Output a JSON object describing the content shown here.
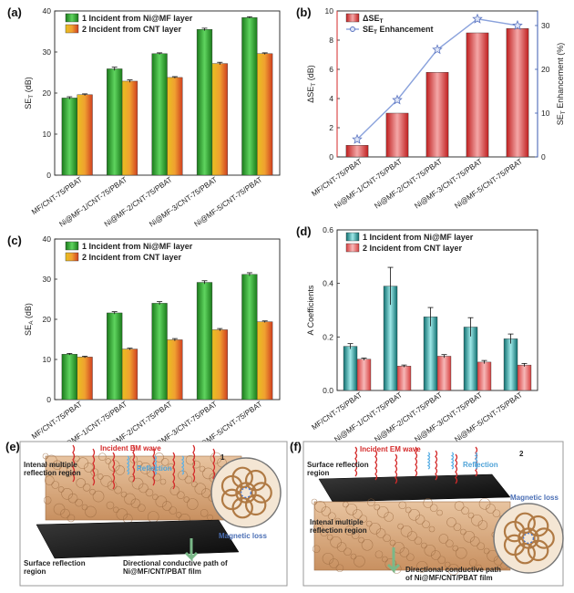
{
  "chart_data": [
    {
      "panel": "(a)",
      "type": "bar",
      "categories": [
        "MF/CNT-75/PBAT",
        "Ni@MF-1/CNT-75/PBAT",
        "Ni@MF-2/CNT-75/PBAT",
        "Ni@MF-3/CNT-75/PBAT",
        "Ni@MF-5/CNT-75/PBAT"
      ],
      "series": [
        {
          "name": "1 Incident from Ni@MF layer",
          "values": [
            18.8,
            25.9,
            29.6,
            35.5,
            38.4
          ],
          "errors": [
            0.3,
            0.4,
            0.2,
            0.3,
            0.2
          ],
          "color": "#2e9e2e"
        },
        {
          "name": "2 Incident from CNT layer",
          "values": [
            19.6,
            22.9,
            23.8,
            27.2,
            29.6
          ],
          "errors": [
            0.2,
            0.3,
            0.2,
            0.3,
            0.2
          ],
          "color": "#e0892a"
        }
      ],
      "ylabel": "SE",
      "ylabel_sub": "T",
      "ylabel_tail": " (dB)",
      "ylim": [
        0,
        40
      ],
      "yticks": [
        0,
        10,
        20,
        30,
        40
      ]
    },
    {
      "panel": "(b)",
      "type": "bar",
      "categories": [
        "MF/CNT-75/PBAT",
        "Ni@MF-1/CNT-75/PBAT",
        "Ni@MF-2/CNT-75/PBAT",
        "Ni@MF-3/CNT-75/PBAT",
        "Ni@MF-5/CNT-75/PBAT"
      ],
      "series": [
        {
          "name": "ΔSE",
          "name_sub": "T",
          "values": [
            0.8,
            3.0,
            5.8,
            8.5,
            8.8
          ],
          "color": "#d93838"
        },
        {
          "name": "SE",
          "name_sub": "T",
          "name_tail": " Enhancement",
          "values": [
            4,
            13,
            24.5,
            31.5,
            30
          ],
          "color": "#7f9ad6",
          "axis": "right"
        }
      ],
      "ylabel": "ΔSE",
      "ylabel_sub": "T",
      "ylabel_tail": " (dB)",
      "ylabel_right": "SE",
      "ylabel_right_sub": "T",
      "ylabel_right_tail": " Enhancement (%)",
      "ylim": [
        0,
        10
      ],
      "yticks": [
        0,
        2,
        4,
        6,
        8,
        10
      ],
      "ylim_right": [
        0,
        33.33
      ],
      "yticks_right": [
        0,
        10,
        20,
        30
      ]
    },
    {
      "panel": "(c)",
      "type": "bar",
      "categories": [
        "MF/CNT-75/PBAT",
        "Ni@MF-1/CNT-75/PBAT",
        "Ni@MF-2/CNT-75/PBAT",
        "Ni@MF-3/CNT-75/PBAT",
        "Ni@MF-5/CNT-75/PBAT"
      ],
      "series": [
        {
          "name": "1 Incident from Ni@MF layer",
          "values": [
            11.3,
            21.6,
            24.0,
            29.2,
            31.2
          ],
          "errors": [
            0.2,
            0.3,
            0.4,
            0.4,
            0.4
          ],
          "color": "#2e9e2e"
        },
        {
          "name": "2 Incident from CNT layer",
          "values": [
            10.6,
            12.6,
            14.9,
            17.4,
            19.4
          ],
          "errors": [
            0.2,
            0.2,
            0.3,
            0.3,
            0.2
          ],
          "color": "#e0892a"
        }
      ],
      "ylabel": "SE",
      "ylabel_sub": "A",
      "ylabel_tail": " (dB)",
      "ylim": [
        0,
        40
      ],
      "yticks": [
        0,
        10,
        20,
        30,
        40
      ]
    },
    {
      "panel": "(d)",
      "type": "bar",
      "categories": [
        "MF/CNT-75/PBAT",
        "Ni@MF-1/CNT-75/PBAT",
        "Ni@MF-2/CNT-75/PBAT",
        "Ni@MF-3/CNT-75/PBAT",
        "Ni@MF-5/CNT-75/PBAT"
      ],
      "series": [
        {
          "name": "1 Incident from Ni@MF layer",
          "values": [
            0.165,
            0.39,
            0.275,
            0.237,
            0.193
          ],
          "errors": [
            0.01,
            0.07,
            0.035,
            0.035,
            0.018
          ],
          "color": "#2aa3a3"
        },
        {
          "name": "2 Incident from CNT layer",
          "values": [
            0.117,
            0.091,
            0.128,
            0.106,
            0.095
          ],
          "errors": [
            0.004,
            0.004,
            0.006,
            0.006,
            0.006
          ],
          "color": "#e06a6a"
        }
      ],
      "ylabel": "A Coefficients",
      "ylim": [
        0,
        0.6
      ],
      "yticks": [
        0.0,
        0.2,
        0.4,
        0.6
      ],
      "ytick_labels": [
        "0.0",
        "0.2",
        "0.4",
        "0.6"
      ]
    }
  ],
  "schematics": {
    "e": {
      "label": "(e)",
      "number": "1",
      "incident": "Incident EM wave",
      "reflection": "Reflection",
      "internal": [
        "Intenal multiple",
        "reflection region"
      ],
      "magnetic": "Magnetic loss",
      "surface": [
        "Surface reflection",
        "region"
      ],
      "path": [
        "Directional conductive path of",
        "Ni@MF/CNT/PBAT film"
      ]
    },
    "f": {
      "label": "(f)",
      "number": "2",
      "incident": "Incident EM wave",
      "reflection": "Reflection",
      "surface": [
        "Surface reflection",
        "region"
      ],
      "magnetic": "Magnetic loss",
      "internal": [
        "Intenal multiple",
        "reflection region"
      ],
      "path": [
        "Directional conductive path",
        "of Ni@MF/CNT/PBAT film"
      ]
    }
  }
}
